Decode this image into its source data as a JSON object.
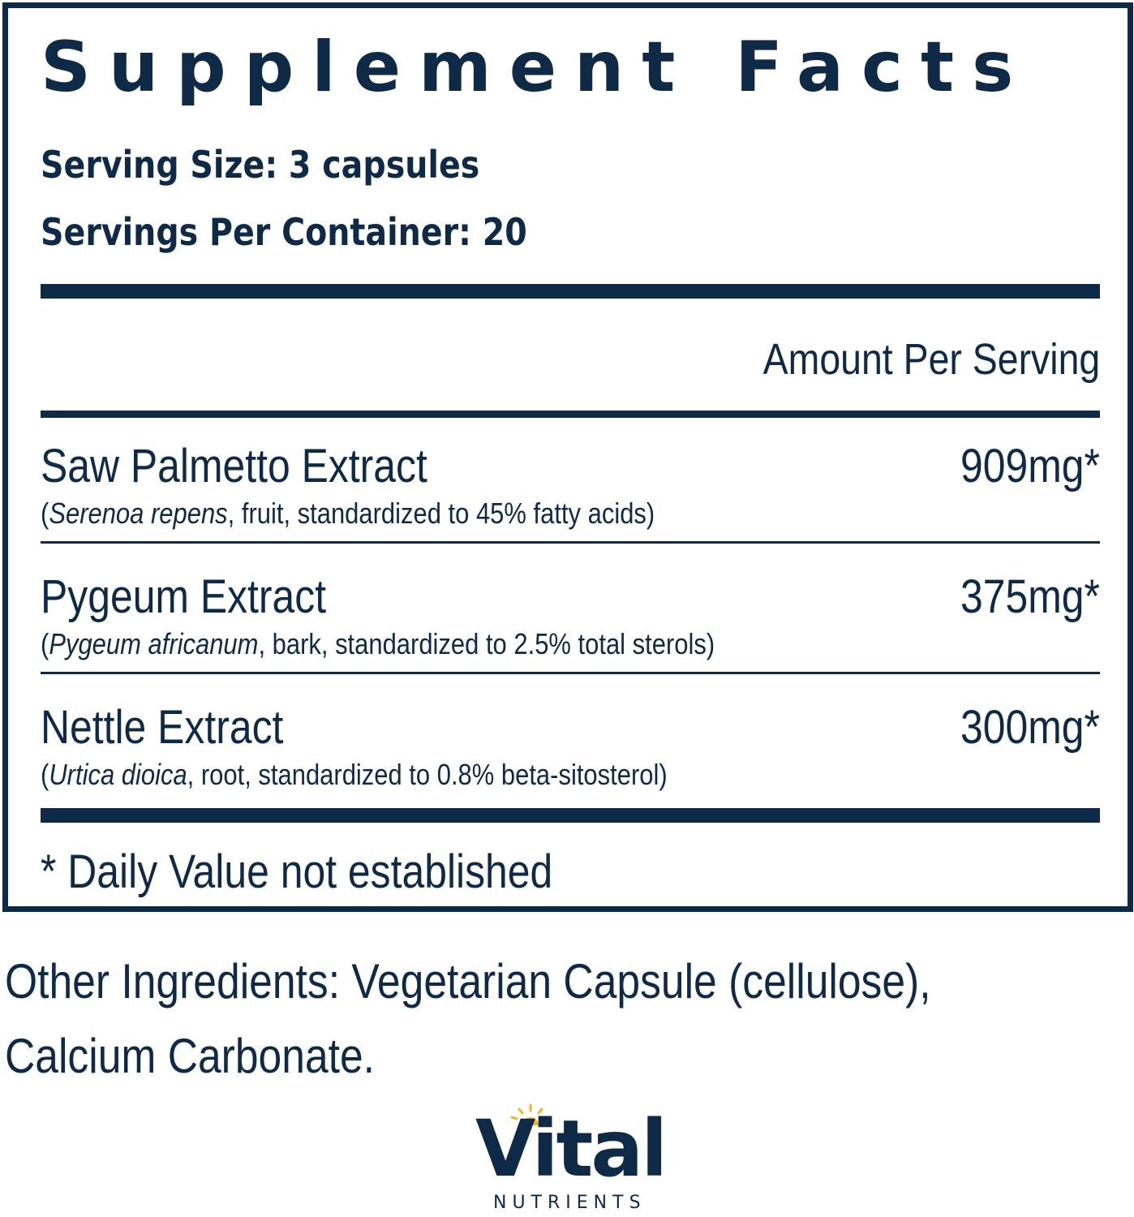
{
  "facts": {
    "title": "Supplement Facts",
    "serving_size": "Serving Size: 3 capsules",
    "servings_per_container": "Servings Per Container: 20",
    "amount_header": "Amount Per Serving",
    "ingredients": [
      {
        "name": "Saw Palmetto Extract",
        "latin": "Serenoa repens",
        "detail": ", fruit, standardized to 45% fatty acids",
        "amount": "909mg*"
      },
      {
        "name": "Pygeum Extract",
        "latin": "Pygeum africanum",
        "detail": ", bark, standardized to 2.5% total sterols",
        "amount": "375mg*"
      },
      {
        "name": "Nettle Extract",
        "latin": "Urtica dioica",
        "detail": ", root, standardized to 0.8% beta-sitosterol",
        "amount": "300mg*"
      }
    ],
    "footnote": "* Daily Value not established"
  },
  "other_ingredients": {
    "line1": "Other Ingredients: Vegetarian Capsule (cellulose),",
    "line2": "Calcium Carbonate."
  },
  "brand": {
    "name": "Vital",
    "sub": "NUTRIENTS",
    "accent_color": "#f5b324",
    "text_color": "#0f2a47"
  }
}
